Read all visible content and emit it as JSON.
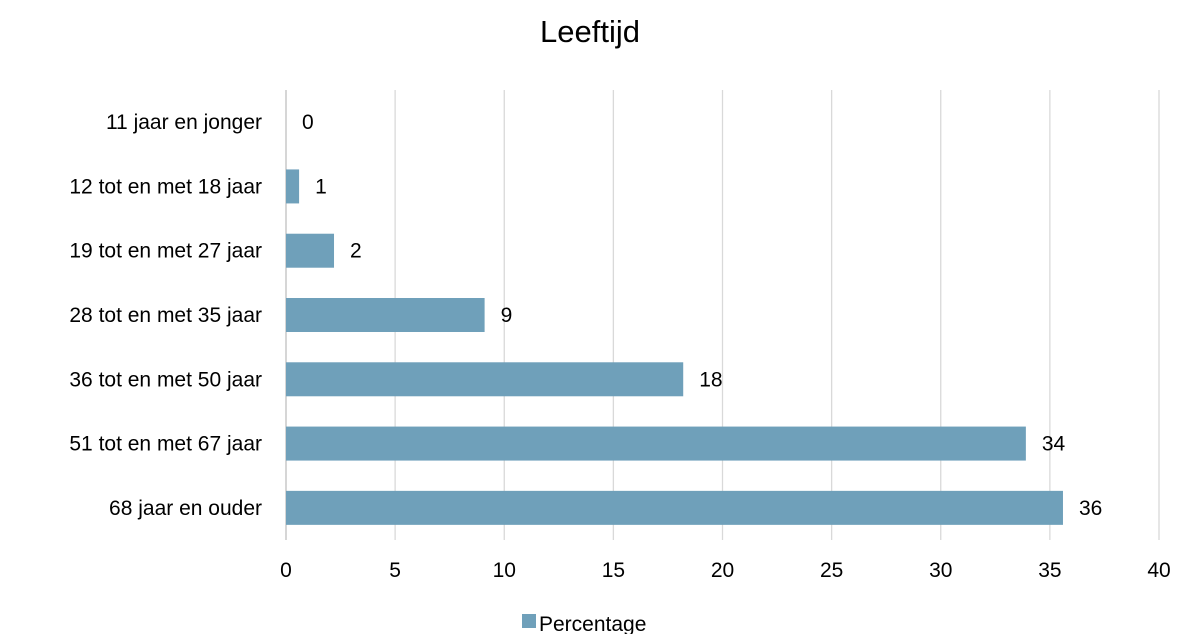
{
  "chart_data": {
    "type": "bar",
    "orientation": "horizontal",
    "title": "Leeftijd",
    "xlabel": "",
    "ylabel": "",
    "categories": [
      "11 jaar en jonger",
      "12 tot en met 18 jaar",
      "19 tot en met 27 jaar",
      "28 tot en met 35 jaar",
      "36 tot en met 50 jaar",
      "51 tot en met 67 jaar",
      "68 jaar en ouder"
    ],
    "series": [
      {
        "name": "Percentage",
        "values": [
          0,
          0.6,
          2.2,
          9.1,
          18.2,
          33.9,
          35.6
        ],
        "data_labels": [
          "0",
          "1",
          "2",
          "9",
          "18",
          "34",
          "36"
        ]
      }
    ],
    "xlim": [
      0,
      40
    ],
    "x_ticks": [
      "0",
      "5",
      "10",
      "15",
      "20",
      "25",
      "30",
      "35",
      "40"
    ],
    "grid": "vertical",
    "legend_position": "bottom",
    "colors": {
      "bar": "#6fa0ba",
      "grid": "#d9d9d9",
      "text": "#000000"
    }
  }
}
